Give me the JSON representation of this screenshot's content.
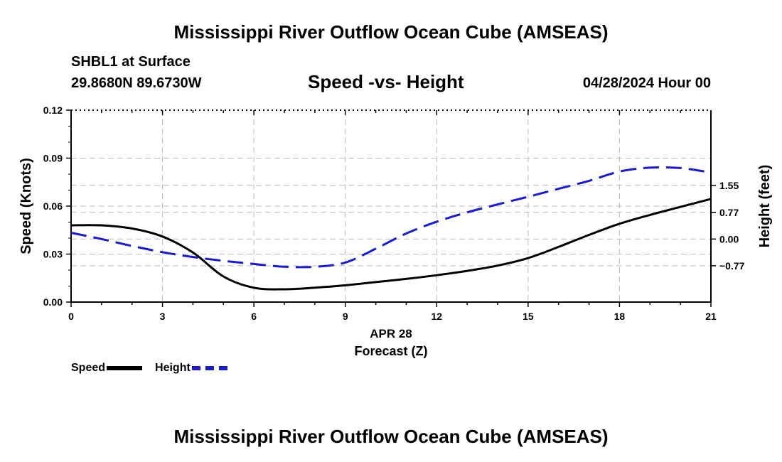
{
  "header": {
    "title": "Mississippi River Outflow Ocean Cube (AMSEAS)",
    "station": "SHBL1 at Surface",
    "coordinates": "29.8680N  89.6730W",
    "subtitle": "Speed -vs- Height",
    "datetime": "04/28/2024 Hour 00"
  },
  "footer": {
    "title": "Mississippi River Outflow Ocean Cube (AMSEAS)"
  },
  "legend": {
    "speed_label": "Speed",
    "height_label": "Height"
  },
  "colors": {
    "speed": "#000000",
    "height": "#1a1ad0",
    "grid": "#bbbbbb"
  },
  "chart_data": {
    "type": "line",
    "title": "Speed -vs- Height",
    "xlabel_date": "APR 28",
    "xlabel": "Forecast (Z)",
    "ylabel_left": "Speed (Knots)",
    "ylabel_right": "Height (feet)",
    "xlim": [
      0,
      21
    ],
    "xticks": [
      0,
      3,
      6,
      9,
      12,
      15,
      18,
      21
    ],
    "xtick_labels": [
      "0",
      "3",
      "6",
      "9",
      "12",
      "15",
      "18",
      "21"
    ],
    "ylim_left": [
      0,
      0.12
    ],
    "yticks_left": [
      0,
      0.03,
      0.06,
      0.09,
      0.12
    ],
    "ytick_labels_left": [
      "0.00",
      "0.03",
      "0.06",
      "0.09",
      "0.12"
    ],
    "ylim_right": [
      -1.82,
      3.72
    ],
    "yticks_right": [
      -0.77,
      0.0,
      0.77,
      1.55
    ],
    "ytick_labels_right": [
      "−0.77",
      "0.00",
      "0.77",
      "1.55"
    ],
    "grid": true,
    "legend_position": "bottom-left",
    "series": [
      {
        "name": "Speed",
        "axis": "left",
        "style": "solid",
        "x": [
          0,
          1,
          2,
          3,
          4,
          5,
          6,
          7,
          8,
          9,
          10,
          11,
          12,
          13,
          14,
          15,
          16,
          17,
          18,
          19,
          20,
          21
        ],
        "values": [
          0.048,
          0.048,
          0.046,
          0.041,
          0.031,
          0.016,
          0.009,
          0.008,
          0.009,
          0.0105,
          0.0125,
          0.0145,
          0.0168,
          0.0195,
          0.0228,
          0.0275,
          0.0345,
          0.042,
          0.049,
          0.0545,
          0.0595,
          0.0645
        ]
      },
      {
        "name": "Height",
        "axis": "right",
        "style": "dashed",
        "x": [
          0,
          1,
          2,
          3,
          4,
          5,
          6,
          7,
          8,
          9,
          10,
          11,
          12,
          13,
          14,
          15,
          16,
          17,
          18,
          19,
          20,
          21
        ],
        "values": [
          0.18,
          0.0,
          -0.2,
          -0.38,
          -0.52,
          -0.63,
          -0.72,
          -0.8,
          -0.8,
          -0.68,
          -0.28,
          0.16,
          0.5,
          0.77,
          1.0,
          1.22,
          1.45,
          1.68,
          1.95,
          2.06,
          2.05,
          1.92
        ]
      }
    ]
  }
}
